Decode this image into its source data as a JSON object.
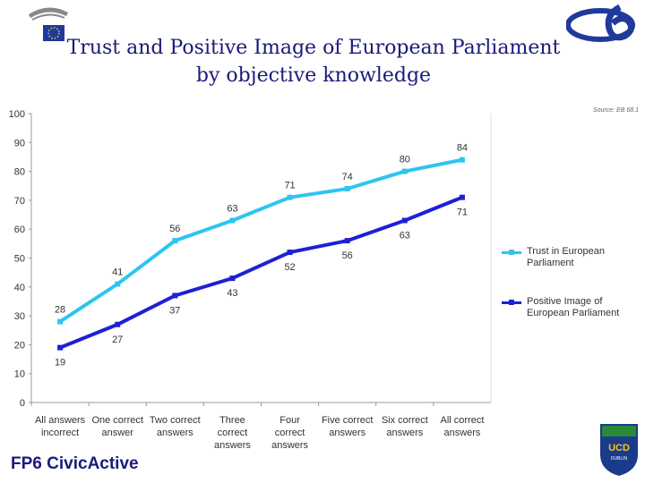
{
  "header": {
    "title_line1": "Trust and Positive Image of European Parliament",
    "title_line2": "by objective knowledge",
    "source": "Source: EB 68.1"
  },
  "footer": {
    "brand_fp6": "FP6",
    "brand_civic": "Civic",
    "brand_active": "Active",
    "ucd_text": "UCD",
    "ucd_sub": "DUBLIN"
  },
  "colors": {
    "trust": "#2ec4f0",
    "image": "#1f1fd6",
    "title": "#1a1a7a"
  },
  "chart_data": {
    "type": "line",
    "title": "Trust and Positive Image of European Parliament by objective knowledge",
    "categories": [
      [
        "All answers",
        "incorrect"
      ],
      [
        "One correct",
        "answer"
      ],
      [
        "Two correct",
        "answers"
      ],
      [
        "Three",
        "correct",
        "answers"
      ],
      [
        "Four",
        "correct",
        "answers"
      ],
      [
        "Five correct",
        "answers"
      ],
      [
        "Six correct",
        "answers"
      ],
      [
        "All correct",
        "answers"
      ]
    ],
    "ylim": [
      0,
      100
    ],
    "yticks": [
      0,
      10,
      20,
      30,
      40,
      50,
      60,
      70,
      80,
      90,
      100
    ],
    "series": [
      {
        "name": "Trust in European Parliament",
        "legend_lines": [
          "Trust in European",
          "Parliament"
        ],
        "values": [
          28,
          41,
          56,
          63,
          71,
          74,
          80,
          84
        ]
      },
      {
        "name": "Positive Image of European Parliament",
        "legend_lines": [
          "Positive Image of",
          "European Parliament"
        ],
        "values": [
          19,
          27,
          37,
          43,
          52,
          56,
          63,
          71
        ]
      }
    ],
    "legend_position": "right"
  }
}
